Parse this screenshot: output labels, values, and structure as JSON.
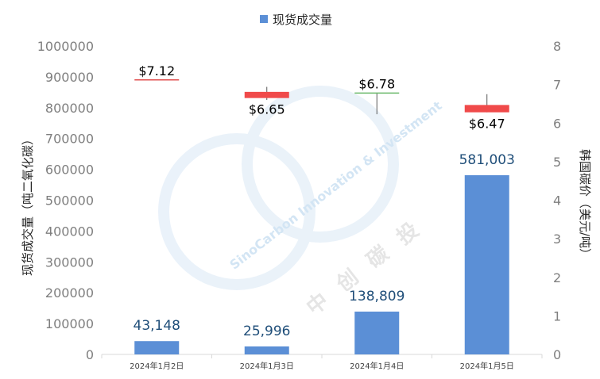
{
  "watermark": {
    "en_text": "SinoCarbon Innovation & Investment",
    "cn_text": "中创碳投"
  },
  "chart_data": {
    "type": "bar",
    "legend": {
      "label": "现货成交量",
      "position": "top",
      "color": "#5b8fd6"
    },
    "categories": [
      "2024年1月2日",
      "2024年1月3日",
      "2024年1月4日",
      "2024年1月5日"
    ],
    "series": [
      {
        "name": "现货成交量",
        "type": "bar",
        "axis": "left",
        "values": [
          43148,
          25996,
          138809,
          581003
        ],
        "labels": [
          "43,148",
          "25,996",
          "138,809",
          "581,003"
        ],
        "color": "#5b8fd6"
      },
      {
        "type": "candlestick",
        "axis": "right",
        "open": [
          7.12,
          6.65,
          6.78,
          6.47
        ],
        "close": [
          7.12,
          6.81,
          6.78,
          6.28
        ],
        "high": [
          7.12,
          6.94,
          6.78,
          6.75
        ],
        "low": [
          7.12,
          6.6,
          6.23,
          6.28
        ],
        "labels": [
          "$7.12",
          "$6.65",
          "$6.78",
          "$6.47"
        ],
        "color_down": "#f04a4a",
        "color_flat_up": "#6ab96a",
        "color_flat_down": "#e25050"
      }
    ],
    "y_left": {
      "label": "现货成交量（吨二氧化碳）",
      "min": 0,
      "max": 1000000,
      "ticks": [
        "0",
        "100000",
        "200000",
        "300000",
        "400000",
        "500000",
        "600000",
        "700000",
        "800000",
        "900000",
        "1000000"
      ]
    },
    "y_right": {
      "label": "韩国碳价（美元/吨）",
      "min": 0,
      "max": 8,
      "ticks": [
        "0",
        "1",
        "2",
        "3",
        "4",
        "5",
        "6",
        "7",
        "8"
      ]
    },
    "grid": false
  }
}
